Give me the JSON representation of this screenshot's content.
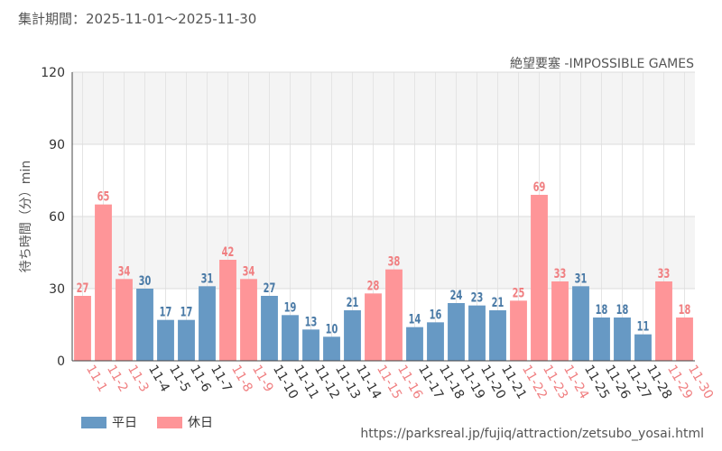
{
  "header": {
    "period_label": "集計期間：2025-11-01～2025-11-30",
    "attraction": "絶望要塞 -IMPOSSIBLE GAMES"
  },
  "legend": {
    "weekday": "平日",
    "holiday": "休日"
  },
  "source": "https://parksreal.jp/fujiq/attraction/zetsubo_yosai.html",
  "colors": {
    "weekday": "#6799c4",
    "holiday": "#fe9598",
    "holiday_label": "#f07f81",
    "weekday_label": "#4a7aa6"
  },
  "chart_data": {
    "type": "bar",
    "title": "絶望要塞 -IMPOSSIBLE GAMES",
    "ylabel": "待ち時間（分）min",
    "xlabel": "",
    "ylim": [
      0,
      120
    ],
    "yticks": [
      0,
      30,
      60,
      90,
      120
    ],
    "categories": [
      "11-1",
      "11-2",
      "11-3",
      "11-4",
      "11-5",
      "11-6",
      "11-7",
      "11-8",
      "11-9",
      "11-10",
      "11-11",
      "11-12",
      "11-13",
      "11-14",
      "11-15",
      "11-16",
      "11-17",
      "11-18",
      "11-19",
      "11-20",
      "11-21",
      "11-22",
      "11-23",
      "11-24",
      "11-25",
      "11-26",
      "11-27",
      "11-28",
      "11-29",
      "11-30"
    ],
    "values": [
      27,
      65,
      34,
      30,
      17,
      17,
      31,
      42,
      34,
      27,
      19,
      13,
      10,
      21,
      28,
      38,
      14,
      16,
      24,
      23,
      21,
      25,
      69,
      33,
      31,
      18,
      18,
      11,
      33,
      18
    ],
    "day_type": [
      "holiday",
      "holiday",
      "holiday",
      "weekday",
      "weekday",
      "weekday",
      "weekday",
      "holiday",
      "holiday",
      "weekday",
      "weekday",
      "weekday",
      "weekday",
      "weekday",
      "holiday",
      "holiday",
      "weekday",
      "weekday",
      "weekday",
      "weekday",
      "weekday",
      "holiday",
      "holiday",
      "holiday",
      "weekday",
      "weekday",
      "weekday",
      "weekday",
      "holiday",
      "holiday"
    ],
    "series": [
      {
        "name": "待ち時間",
        "values": [
          27,
          65,
          34,
          30,
          17,
          17,
          31,
          42,
          34,
          27,
          19,
          13,
          10,
          21,
          28,
          38,
          14,
          16,
          24,
          23,
          21,
          25,
          69,
          33,
          31,
          18,
          18,
          11,
          33,
          18
        ]
      }
    ]
  }
}
